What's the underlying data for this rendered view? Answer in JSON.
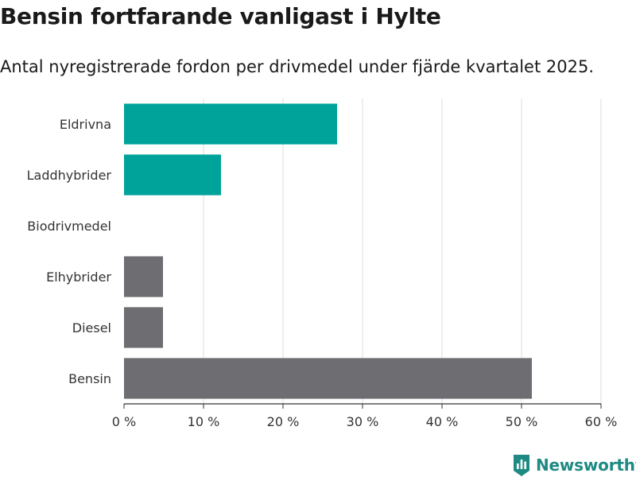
{
  "header": {
    "title": "Bensin fortfarande vanligast i Hylte",
    "subtitle": "Antal nyregistrerade fordon per drivmedel under fjärde kvartalet 2025."
  },
  "branding": {
    "name": "Newsworthy"
  },
  "colors": {
    "highlight": "#00A39A",
    "default": "#6D6D72",
    "grid": "#dddddd",
    "axis": "#333333",
    "brand": "#1f8a83"
  },
  "chart_data": {
    "type": "bar",
    "orientation": "horizontal",
    "title": "Bensin fortfarande vanligast i Hylte",
    "subtitle": "Antal nyregistrerade fordon per drivmedel under fjärde kvartalet 2025.",
    "categories": [
      "Eldrivna",
      "Laddhybrider",
      "Biodrivmedel",
      "Elhybrider",
      "Diesel",
      "Bensin"
    ],
    "values": [
      26.8,
      12.2,
      0,
      4.9,
      4.9,
      51.3
    ],
    "highlight": [
      true,
      true,
      false,
      false,
      false,
      false
    ],
    "unit": "%",
    "xlim": [
      0,
      60
    ],
    "xticks": [
      0,
      10,
      20,
      30,
      40,
      50,
      60
    ],
    "xtick_labels": [
      "0 %",
      "10 %",
      "20 %",
      "30 %",
      "40 %",
      "50 %",
      "60 %"
    ],
    "xlabel": "",
    "ylabel": "",
    "grid": "vertical"
  }
}
